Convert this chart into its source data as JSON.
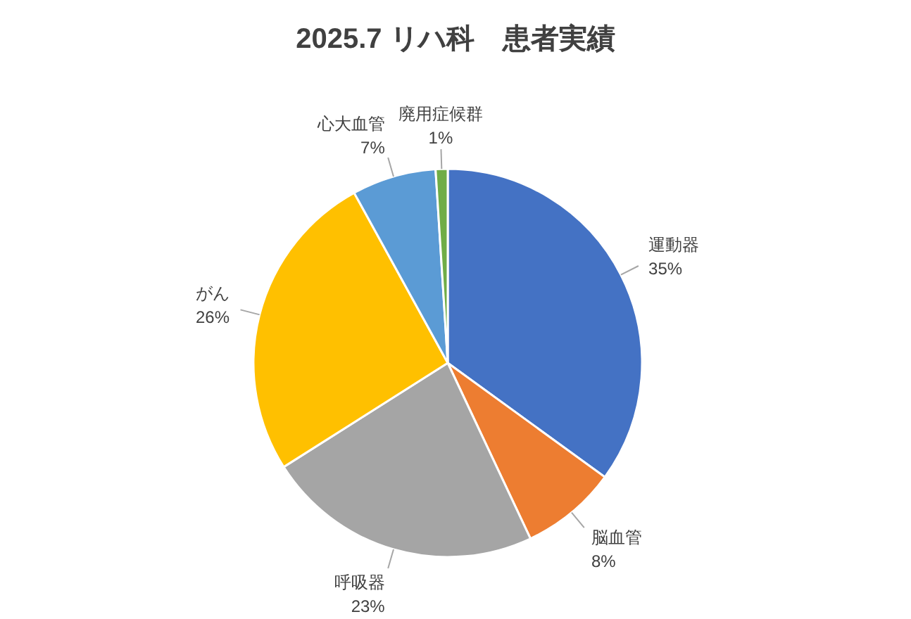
{
  "chart_data": {
    "type": "pie",
    "title": "2025.7 リハ科　患者実績",
    "categories": [
      "運動器",
      "脳血管",
      "呼吸器",
      "がん",
      "心大血管",
      "廃用症候群"
    ],
    "values": [
      35,
      8,
      23,
      26,
      7,
      1
    ],
    "value_labels": [
      "35%",
      "8%",
      "23%",
      "26%",
      "7%",
      "1%"
    ],
    "colors": [
      "#4472c4",
      "#ed7d31",
      "#a5a5a5",
      "#ffc000",
      "#5b9bd5",
      "#70ad47"
    ]
  }
}
